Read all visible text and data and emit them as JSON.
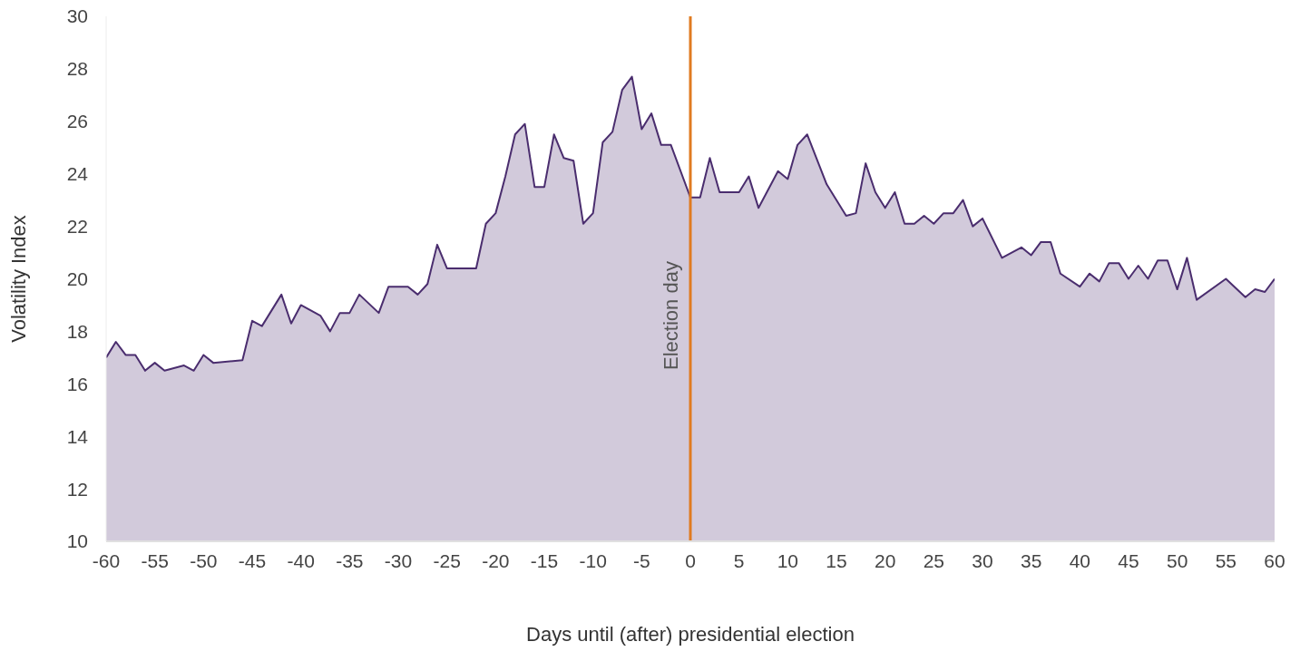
{
  "chart_data": {
    "type": "area",
    "xlabel": "Days until (after) presidential election",
    "ylabel": "Volatility Index",
    "x": [
      -60,
      -59,
      -58,
      -57,
      -56,
      -55,
      -54,
      -52,
      -51,
      -50,
      -49,
      -46,
      -45,
      -44,
      -42,
      -41,
      -40,
      -38,
      -37,
      -36,
      -35,
      -34,
      -32,
      -31,
      -29,
      -28,
      -27,
      -26,
      -25,
      -22,
      -21,
      -20,
      -19,
      -18,
      -17,
      -16,
      -15,
      -14,
      -13,
      -12,
      -11,
      -10,
      -9,
      -8,
      -7,
      -6,
      -5,
      -4,
      -3,
      -2,
      0,
      1,
      2,
      3,
      5,
      6,
      7,
      9,
      10,
      11,
      12,
      14,
      16,
      17,
      18,
      19,
      20,
      21,
      22,
      23,
      24,
      25,
      26,
      27,
      28,
      29,
      30,
      32,
      34,
      35,
      36,
      37,
      38,
      40,
      41,
      42,
      43,
      44,
      45,
      46,
      47,
      48,
      49,
      50,
      51,
      52,
      55,
      57,
      58,
      59,
      60
    ],
    "series": [
      {
        "color": "#4a2d6e",
        "values": [
          17.0,
          17.6,
          17.1,
          17.1,
          16.5,
          16.8,
          16.5,
          16.7,
          16.5,
          17.1,
          16.8,
          16.9,
          18.4,
          18.2,
          19.4,
          18.3,
          19.0,
          18.6,
          18.0,
          18.7,
          18.7,
          19.4,
          18.7,
          19.7,
          19.7,
          19.4,
          19.8,
          21.3,
          20.4,
          20.4,
          22.1,
          22.5,
          23.9,
          25.5,
          25.9,
          23.5,
          23.5,
          25.5,
          24.6,
          24.5,
          22.1,
          22.5,
          25.2,
          25.6,
          27.2,
          27.7,
          25.7,
          26.3,
          25.1,
          25.1,
          23.1,
          23.1,
          24.6,
          23.3,
          23.3,
          23.9,
          22.7,
          24.1,
          23.8,
          25.1,
          25.5,
          23.6,
          22.4,
          22.5,
          24.4,
          23.3,
          22.7,
          23.3,
          22.1,
          22.1,
          22.4,
          22.1,
          22.5,
          22.5,
          23.0,
          22.0,
          22.3,
          20.8,
          21.2,
          20.9,
          21.4,
          21.4,
          20.2,
          19.7,
          20.2,
          19.9,
          20.6,
          20.6,
          20.0,
          20.5,
          20.0,
          20.7,
          20.7,
          19.6,
          20.8,
          19.2,
          20.0,
          19.3,
          19.6,
          19.5,
          20.0
        ]
      }
    ],
    "xlim": [
      -60,
      60
    ],
    "xticks": [
      -60,
      -55,
      -50,
      -45,
      -40,
      -35,
      -30,
      -25,
      -20,
      -15,
      -10,
      -5,
      0,
      5,
      10,
      15,
      20,
      25,
      30,
      35,
      40,
      45,
      50,
      55,
      60
    ],
    "ylim": [
      10,
      30
    ],
    "yticks": [
      10,
      12,
      14,
      16,
      18,
      20,
      22,
      24,
      26,
      28,
      30
    ],
    "ref_lines": [
      {
        "axis": "x",
        "value": 0,
        "label": "Election day",
        "color": "#e07b20"
      }
    ],
    "grid": false,
    "legend": false
  }
}
